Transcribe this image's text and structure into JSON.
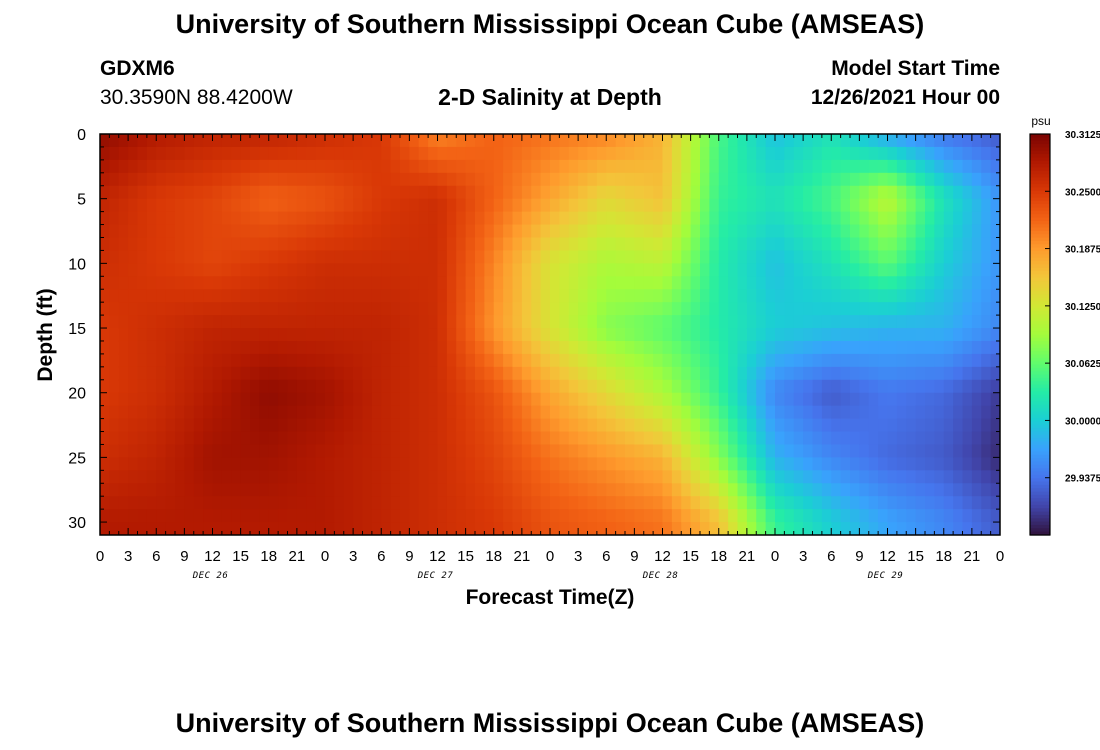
{
  "header": {
    "title": "University of Southern Mississippi Ocean Cube (AMSEAS)",
    "station": "GDXM6",
    "location": "30.3590N  88.4200W",
    "plot_subtitle": "2-D Salinity at Depth",
    "model_start_label": "Model Start Time",
    "model_start_value": "12/26/2021 Hour 00"
  },
  "footer": {
    "title": "University of Southern Mississippi Ocean Cube (AMSEAS)"
  },
  "chart_data": {
    "type": "heatmap",
    "title": "2-D Salinity at Depth",
    "xlabel": "Forecast Time(Z)",
    "ylabel": "Depth (ft)",
    "x_tick_labels": [
      "0",
      "3",
      "6",
      "9",
      "12",
      "15",
      "18",
      "21",
      "0",
      "3",
      "6",
      "9",
      "12",
      "15",
      "18",
      "21",
      "0",
      "3",
      "6",
      "9",
      "12",
      "15",
      "18",
      "21",
      "0",
      "3",
      "6",
      "9",
      "12",
      "15",
      "18",
      "21",
      "0"
    ],
    "date_labels": [
      "DEC 26",
      "DEC 27",
      "DEC 28",
      "DEC 29"
    ],
    "x_hours": [
      0,
      96
    ],
    "y_ticks": [
      0,
      5,
      10,
      15,
      20,
      25,
      30
    ],
    "ylim": [
      0,
      31
    ],
    "y_inverted": true,
    "grid": false,
    "colorbar": {
      "unit": "psu",
      "min": 29.875,
      "max": 30.3125,
      "tick_values": [
        30.3125,
        30.25,
        30.1875,
        30.125,
        30.0625,
        30.0,
        29.9375
      ],
      "tick_labels": [
        "30.3125",
        "30.2500",
        "30.1875",
        "30.1250",
        "30.0625",
        "30.0000",
        "29.9375"
      ],
      "colors": [
        "#30123b",
        "#4145ab",
        "#4675ed",
        "#39a2fc",
        "#1bcfd4",
        "#24eca6",
        "#61fc6c",
        "#a4fc3b",
        "#d1e834",
        "#f3c63a",
        "#fe9b2d",
        "#f36315",
        "#d93806",
        "#b11901",
        "#7a0402"
      ]
    },
    "depths": [
      0,
      5,
      10,
      15,
      20,
      25,
      30
    ],
    "hours": [
      0,
      6,
      12,
      18,
      24,
      30,
      36,
      42,
      48,
      54,
      60,
      66,
      72,
      78,
      84,
      90,
      96
    ],
    "salinity": [
      [
        30.3,
        30.28,
        30.27,
        30.27,
        30.26,
        30.25,
        30.2,
        30.22,
        30.21,
        30.2,
        30.17,
        30.05,
        29.99,
        30.02,
        29.97,
        29.94,
        29.92
      ],
      [
        30.27,
        30.25,
        30.24,
        30.22,
        30.23,
        30.25,
        30.26,
        30.22,
        30.18,
        30.14,
        30.16,
        30.04,
        30.02,
        30.05,
        30.11,
        30.02,
        29.96
      ],
      [
        30.26,
        30.25,
        30.24,
        30.25,
        30.26,
        30.26,
        30.26,
        30.2,
        30.13,
        30.1,
        30.11,
        30.03,
        29.99,
        30.02,
        30.06,
        30.0,
        29.96
      ],
      [
        30.25,
        30.26,
        30.27,
        30.27,
        30.27,
        30.27,
        30.26,
        30.19,
        30.13,
        30.08,
        30.06,
        30.03,
        30.0,
        29.99,
        29.98,
        29.98,
        29.95
      ],
      [
        30.25,
        30.26,
        30.28,
        30.3,
        30.29,
        30.27,
        30.26,
        30.23,
        30.18,
        30.14,
        30.1,
        30.04,
        29.95,
        29.92,
        29.94,
        29.93,
        29.9
      ],
      [
        30.26,
        30.27,
        30.29,
        30.29,
        30.28,
        30.27,
        30.26,
        30.24,
        30.21,
        30.19,
        30.17,
        30.08,
        29.98,
        29.95,
        29.93,
        29.92,
        29.89
      ],
      [
        30.28,
        30.28,
        30.28,
        30.28,
        30.28,
        30.27,
        30.26,
        30.25,
        30.23,
        30.22,
        30.21,
        30.16,
        30.04,
        30.0,
        29.97,
        29.95,
        29.92
      ]
    ]
  }
}
